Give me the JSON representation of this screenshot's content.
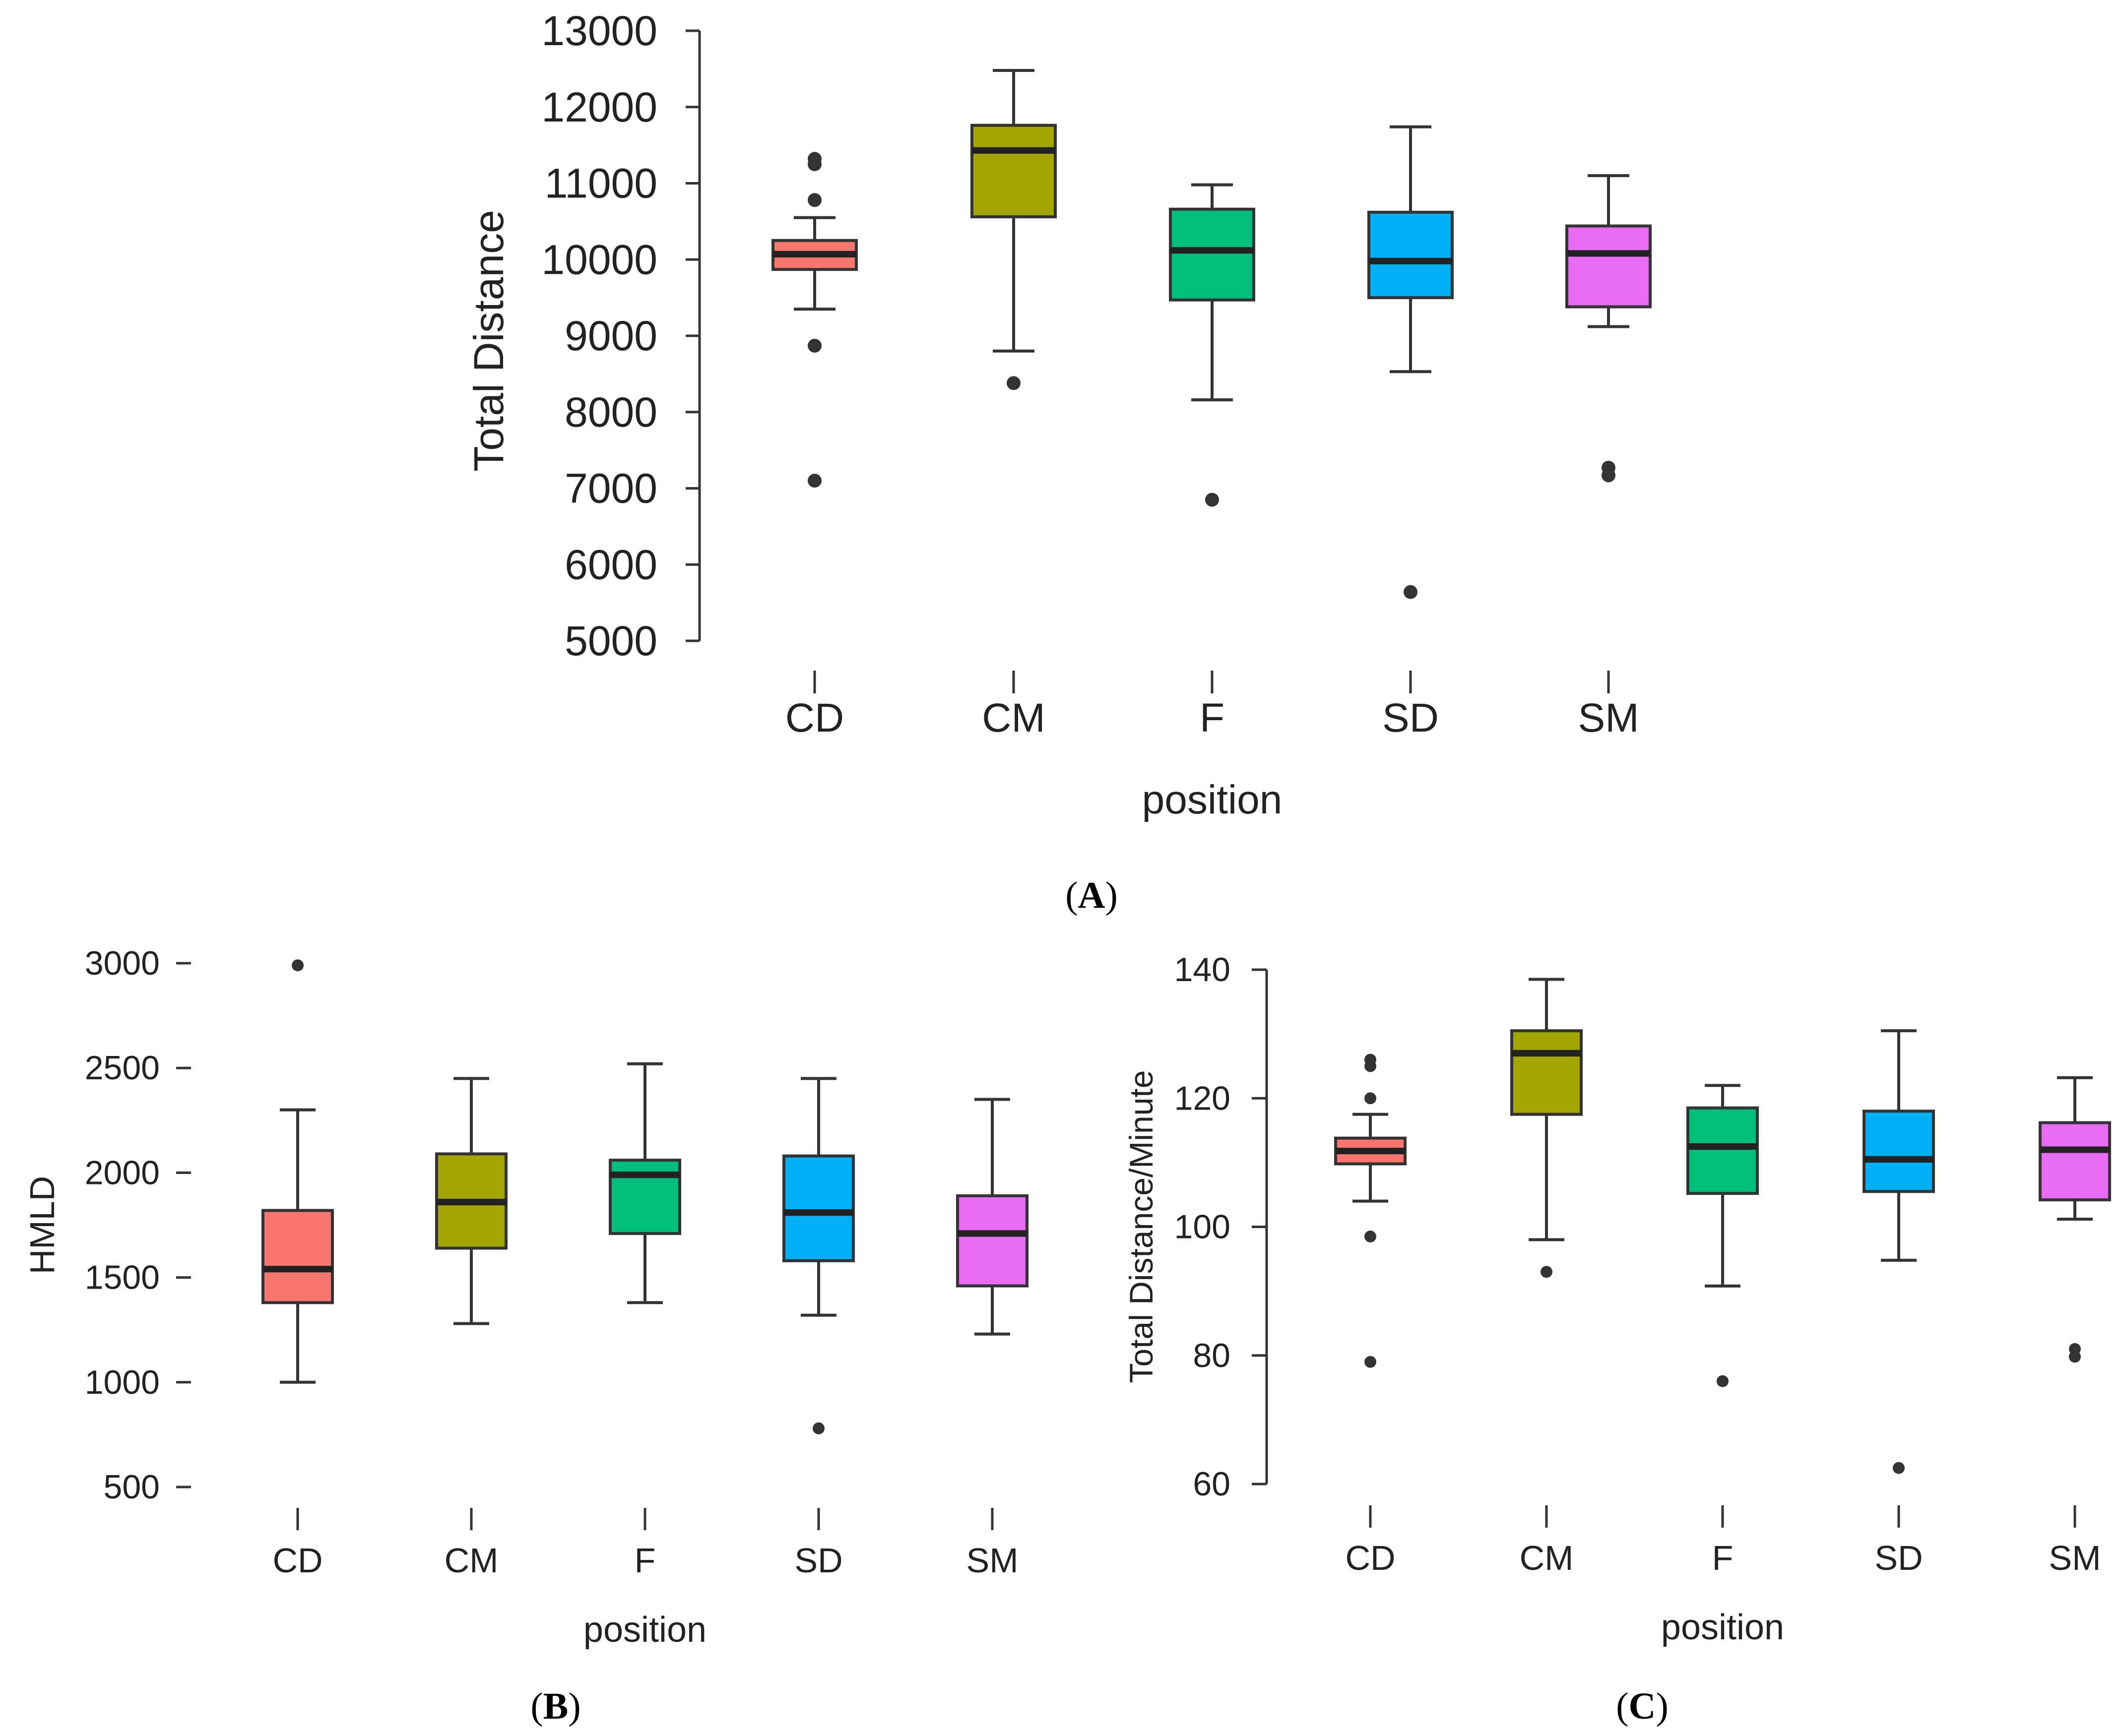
{
  "chart_data": [
    {
      "type": "box",
      "panel_label": "A",
      "xlabel": "position",
      "ylabel": "Total Distance",
      "ylim": [
        5000,
        13000
      ],
      "yticks": [
        5000,
        6000,
        7000,
        8000,
        9000,
        10000,
        11000,
        12000,
        13000
      ],
      "categories": [
        "CD",
        "CM",
        "F",
        "SD",
        "SM"
      ],
      "boxes": [
        {
          "category": "CD",
          "color": "#F8766D",
          "whisker_low": 9350,
          "q1": 9870,
          "median": 10070,
          "q3": 10250,
          "whisker_high": 10550,
          "outliers": [
            11250,
            11320,
            10780,
            8870,
            7100
          ]
        },
        {
          "category": "CM",
          "color": "#A3A500",
          "whisker_low": 8800,
          "q1": 10560,
          "median": 11430,
          "q3": 11760,
          "whisker_high": 12480,
          "outliers": [
            8380
          ]
        },
        {
          "category": "F",
          "color": "#00BF7D",
          "whisker_low": 8160,
          "q1": 9470,
          "median": 10120,
          "q3": 10660,
          "whisker_high": 10980,
          "outliers": [
            6850
          ]
        },
        {
          "category": "SD",
          "color": "#00B0F6",
          "whisker_low": 8530,
          "q1": 9500,
          "median": 9980,
          "q3": 10620,
          "whisker_high": 11740,
          "outliers": [
            5640
          ]
        },
        {
          "category": "SM",
          "color": "#E76BF3",
          "whisker_low": 9120,
          "q1": 9380,
          "median": 10080,
          "q3": 10440,
          "whisker_high": 11100,
          "outliers": [
            7270,
            7170
          ]
        }
      ]
    },
    {
      "type": "box",
      "panel_label": "B",
      "xlabel": "position",
      "ylabel": "HMLD",
      "ylim": [
        500,
        3000
      ],
      "yticks": [
        500,
        1000,
        1500,
        2000,
        2500,
        3000
      ],
      "categories": [
        "CD",
        "CM",
        "F",
        "SD",
        "SM"
      ],
      "boxes": [
        {
          "category": "CD",
          "color": "#F8766D",
          "whisker_low": 1000,
          "q1": 1380,
          "median": 1540,
          "q3": 1820,
          "whisker_high": 2300,
          "outliers": [
            2990
          ]
        },
        {
          "category": "CM",
          "color": "#A3A500",
          "whisker_low": 1280,
          "q1": 1640,
          "median": 1860,
          "q3": 2090,
          "whisker_high": 2450,
          "outliers": []
        },
        {
          "category": "F",
          "color": "#00BF7D",
          "whisker_low": 1380,
          "q1": 1710,
          "median": 1990,
          "q3": 2060,
          "whisker_high": 2520,
          "outliers": []
        },
        {
          "category": "SD",
          "color": "#00B0F6",
          "whisker_low": 1320,
          "q1": 1580,
          "median": 1810,
          "q3": 2080,
          "whisker_high": 2450,
          "outliers": [
            780
          ]
        },
        {
          "category": "SM",
          "color": "#E76BF3",
          "whisker_low": 1230,
          "q1": 1460,
          "median": 1710,
          "q3": 1890,
          "whisker_high": 2350,
          "outliers": []
        }
      ]
    },
    {
      "type": "box",
      "panel_label": "C",
      "xlabel": "position",
      "ylabel": "Total Distance/Minute",
      "ylim": [
        60,
        140
      ],
      "yticks": [
        60,
        80,
        100,
        120,
        140
      ],
      "categories": [
        "CD",
        "CM",
        "F",
        "SD",
        "SM"
      ],
      "boxes": [
        {
          "category": "CD",
          "color": "#F8766D",
          "whisker_low": 104,
          "q1": 109.8,
          "median": 111.8,
          "q3": 113.8,
          "whisker_high": 117.5,
          "outliers": [
            126,
            125,
            120,
            98.5,
            79
          ]
        },
        {
          "category": "CM",
          "color": "#A3A500",
          "whisker_low": 98,
          "q1": 117.5,
          "median": 127,
          "q3": 130.5,
          "whisker_high": 138.5,
          "outliers": [
            93
          ]
        },
        {
          "category": "F",
          "color": "#00BF7D",
          "whisker_low": 90.8,
          "q1": 105.2,
          "median": 112.5,
          "q3": 118.5,
          "whisker_high": 122,
          "outliers": [
            76
          ]
        },
        {
          "category": "SD",
          "color": "#00B0F6",
          "whisker_low": 94.8,
          "q1": 105.5,
          "median": 110.5,
          "q3": 118,
          "whisker_high": 130.5,
          "outliers": [
            62.5
          ]
        },
        {
          "category": "SM",
          "color": "#E76BF3",
          "whisker_low": 101.2,
          "q1": 104.2,
          "median": 112,
          "q3": 116.2,
          "whisker_high": 123.2,
          "outliers": [
            81,
            79.8
          ]
        }
      ]
    }
  ]
}
